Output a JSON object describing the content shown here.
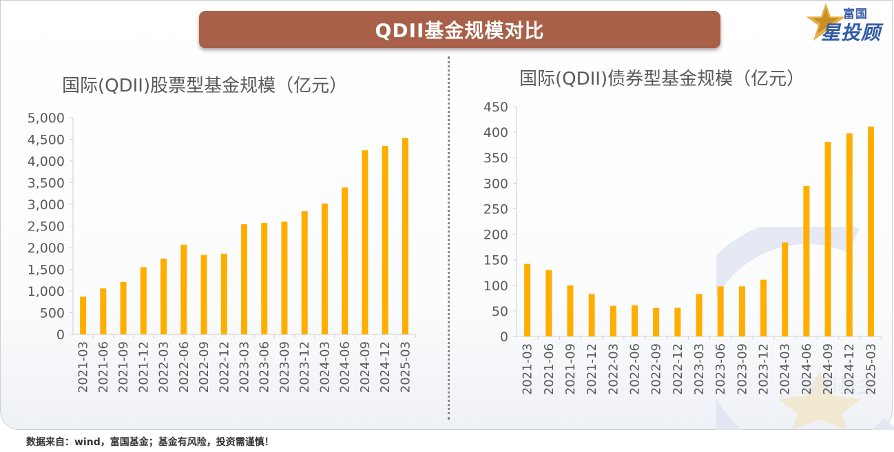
{
  "header": {
    "title": "QDII基金规模对比",
    "brand_top": "富国",
    "brand_main": "星投顾"
  },
  "footer": {
    "source": "数据来自：wind，富国基金；基金有风险，投资需谨慎！"
  },
  "watermark_text": "富国基金",
  "colors": {
    "bar": "#ffae00",
    "title_bar": "#a86048",
    "axis_text": "#595959"
  },
  "chart_data": [
    {
      "type": "bar",
      "title": "国际(QDII)股票型基金规模（亿元）",
      "categories": [
        "2021-03",
        "2021-06",
        "2021-09",
        "2021-12",
        "2022-03",
        "2022-06",
        "2022-09",
        "2022-12",
        "2023-03",
        "2023-06",
        "2023-09",
        "2023-12",
        "2024-03",
        "2024-06",
        "2024-09",
        "2024-12",
        "2025-03"
      ],
      "values": [
        870,
        1060,
        1210,
        1550,
        1750,
        2070,
        1830,
        1860,
        2540,
        2570,
        2600,
        2840,
        3020,
        3390,
        4250,
        4350,
        4530
      ],
      "ylim": [
        0,
        5000
      ],
      "yticks": [
        0,
        500,
        1000,
        1500,
        2000,
        2500,
        3000,
        3500,
        4000,
        4500,
        5000
      ],
      "ytick_labels": [
        "0",
        "500",
        "1,000",
        "1,500",
        "2,000",
        "2,500",
        "3,000",
        "3,500",
        "4,000",
        "4,500",
        "5,000"
      ],
      "xlabel": "",
      "ylabel": "",
      "grid": false
    },
    {
      "type": "bar",
      "title": "国际(QDII)债券型基金规模（亿元）",
      "categories": [
        "2021-03",
        "2021-06",
        "2021-09",
        "2021-12",
        "2022-03",
        "2022-06",
        "2022-09",
        "2022-12",
        "2023-03",
        "2023-06",
        "2023-09",
        "2023-12",
        "2024-03",
        "2024-06",
        "2024-09",
        "2024-12",
        "2025-03"
      ],
      "values": [
        142,
        130,
        100,
        83,
        60,
        61,
        56,
        56,
        83,
        98,
        98,
        111,
        184,
        295,
        381,
        398,
        411
      ],
      "ylim": [
        0,
        450
      ],
      "yticks": [
        0,
        50,
        100,
        150,
        200,
        250,
        300,
        350,
        400,
        450
      ],
      "ytick_labels": [
        "0",
        "50",
        "100",
        "150",
        "200",
        "250",
        "300",
        "350",
        "400",
        "450"
      ],
      "xlabel": "",
      "ylabel": "",
      "grid": false
    }
  ]
}
